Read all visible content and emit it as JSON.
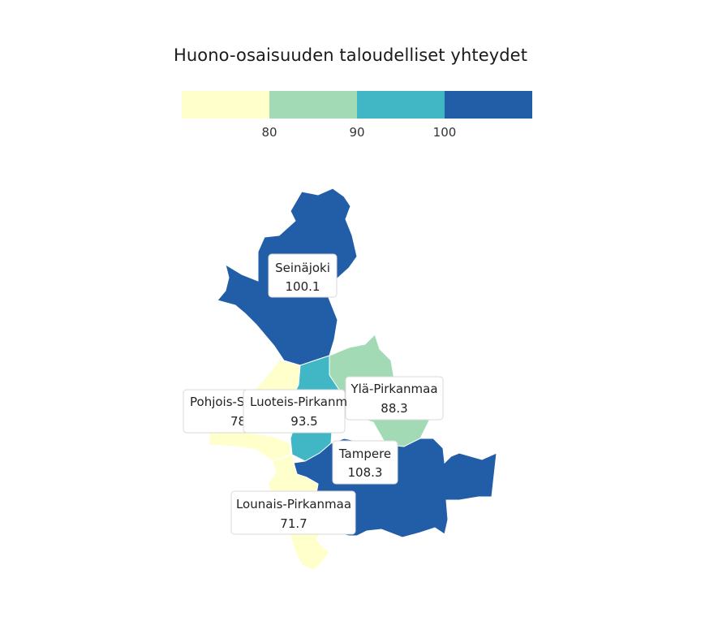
{
  "title": "Huono-osaisuuden taloudelliset yhteydet",
  "legend": {
    "breaks": [
      80,
      90,
      100
    ],
    "tick_labels": [
      "80",
      "90",
      "100"
    ],
    "colors": [
      "#ffffcc",
      "#a1dab4",
      "#41b6c4",
      "#225ea8"
    ]
  },
  "regions": [
    {
      "name": "Seinäjoki",
      "value": 100.1,
      "value_label": "100.1",
      "color": "#225ea8"
    },
    {
      "name": "Ylä-Pirkanmaa",
      "value": 88.3,
      "value_label": "88.3",
      "color": "#a1dab4"
    },
    {
      "name": "Pohjois-S",
      "value_label": "78",
      "color": "#ffffcc"
    },
    {
      "name": "Luoteis-Pirkanm",
      "value": 93.5,
      "value_label": "93.5",
      "color": "#41b6c4"
    },
    {
      "name": "Tampere",
      "value": 108.3,
      "value_label": "108.3",
      "color": "#225ea8"
    },
    {
      "name": "Lounais-Pirkanmaa",
      "value": 71.7,
      "value_label": "71.7",
      "color": "#ffffcc"
    }
  ]
}
